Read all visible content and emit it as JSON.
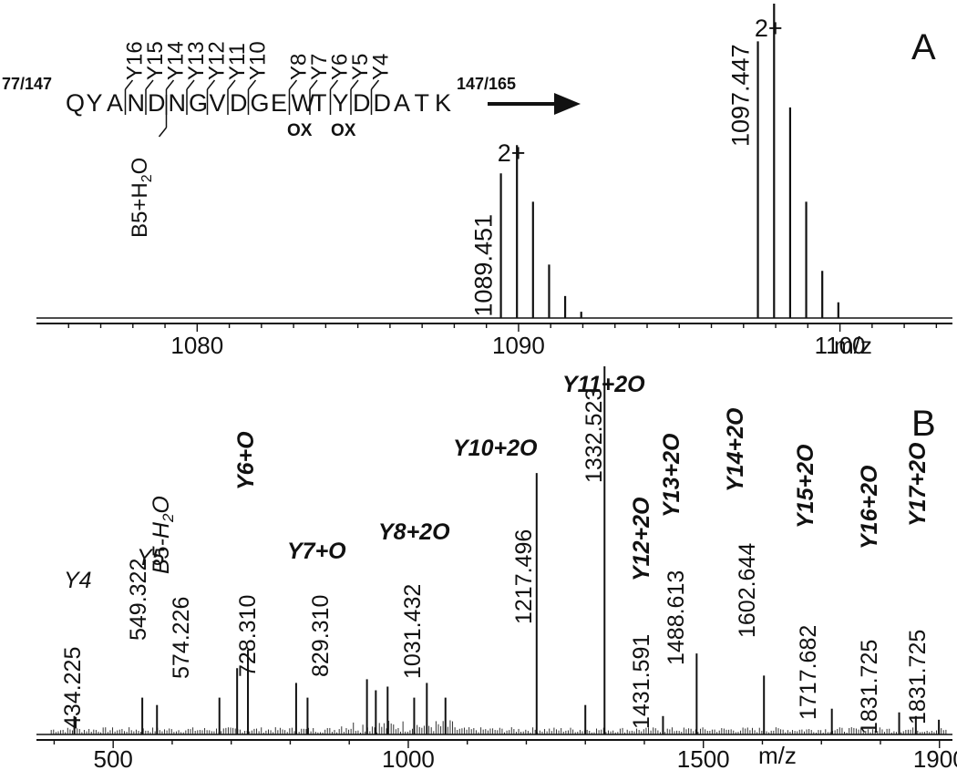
{
  "chart_data": [
    {
      "type": "line",
      "panel_letter": "A",
      "xlabel": "m/z",
      "xlim": [
        1075,
        1103.5
      ],
      "ylim": [
        0,
        100
      ],
      "x_ticks": [
        1080,
        1090,
        1100
      ],
      "grid": false,
      "sequence": {
        "prefix": "77/147",
        "residues": [
          "Q",
          "Y",
          "A",
          "N",
          "D",
          "N",
          "G",
          "V",
          "D",
          "G",
          "E",
          "W",
          "T",
          "Y",
          "D",
          "D",
          "A",
          "T",
          "K"
        ],
        "suffix": "147/165",
        "y_ions": [
          "Y16",
          "Y15",
          "Y14",
          "Y13",
          "Y12",
          "Y11",
          "Y10",
          "Y8",
          "Y7",
          "Y6",
          "Y5",
          "Y4"
        ],
        "b_ion": "B5+H",
        "b_ion_sub": "2",
        "b_ion_end": "O",
        "modifications": [
          "OX",
          "OX"
        ]
      },
      "series": [
        {
          "peaks": [
            {
              "mz": 1089.451,
              "intensity": 46
            },
            {
              "mz": 1089.95,
              "intensity": 55
            },
            {
              "mz": 1090.45,
              "intensity": 37
            },
            {
              "mz": 1090.95,
              "intensity": 17
            },
            {
              "mz": 1091.45,
              "intensity": 7
            },
            {
              "mz": 1091.95,
              "intensity": 2
            },
            {
              "mz": 1097.447,
              "intensity": 88
            },
            {
              "mz": 1097.95,
              "intensity": 100
            },
            {
              "mz": 1098.45,
              "intensity": 67
            },
            {
              "mz": 1098.95,
              "intensity": 37
            },
            {
              "mz": 1099.45,
              "intensity": 15
            },
            {
              "mz": 1099.95,
              "intensity": 5
            }
          ]
        }
      ],
      "annotations": [
        {
          "mz": 1089.451,
          "label": "1089.451"
        },
        {
          "mz": 1089.95,
          "label": "2+"
        },
        {
          "mz": 1097.447,
          "label": "1097.447"
        },
        {
          "mz": 1097.95,
          "label": "2+"
        }
      ]
    },
    {
      "type": "line",
      "panel_letter": "B",
      "xlabel": "m/z",
      "xlim": [
        370,
        1922
      ],
      "ylim": [
        0,
        100
      ],
      "x_ticks": [
        500,
        1000,
        1500,
        1900
      ],
      "grid": false,
      "series": [
        {
          "peaks": [
            {
              "mz": 434.225,
              "intensity": 5
            },
            {
              "mz": 549.322,
              "intensity": 10
            },
            {
              "mz": 574.226,
              "intensity": 8
            },
            {
              "mz": 680,
              "intensity": 10
            },
            {
              "mz": 710,
              "intensity": 18
            },
            {
              "mz": 728.31,
              "intensity": 23
            },
            {
              "mz": 810,
              "intensity": 14
            },
            {
              "mz": 829.31,
              "intensity": 10
            },
            {
              "mz": 930,
              "intensity": 15
            },
            {
              "mz": 945,
              "intensity": 12
            },
            {
              "mz": 965,
              "intensity": 13
            },
            {
              "mz": 1010,
              "intensity": 10
            },
            {
              "mz": 1031.432,
              "intensity": 14
            },
            {
              "mz": 1063,
              "intensity": 10
            },
            {
              "mz": 1217.496,
              "intensity": 71
            },
            {
              "mz": 1300,
              "intensity": 8
            },
            {
              "mz": 1332.523,
              "intensity": 100
            },
            {
              "mz": 1431.591,
              "intensity": 5
            },
            {
              "mz": 1488.613,
              "intensity": 22
            },
            {
              "mz": 1602.644,
              "intensity": 16
            },
            {
              "mz": 1717.682,
              "intensity": 7
            },
            {
              "mz": 1831.725,
              "intensity": 6
            },
            {
              "mz": 1860,
              "intensity": 5
            },
            {
              "mz": 1899,
              "intensity": 4
            }
          ]
        }
      ],
      "annotations": [
        {
          "mz": 434.225,
          "label": "434.225",
          "ion": "Y4",
          "bold": false
        },
        {
          "mz": 549.322,
          "label": "549.322",
          "ion": "Y5",
          "bold": false
        },
        {
          "mz": 574.226,
          "label": "574.226",
          "ion": "B5-H",
          "ion_sub": "2",
          "ion_end": "O",
          "bold": false
        },
        {
          "mz": 728.31,
          "label": "728.310",
          "ion": "Y6+O",
          "bold": true
        },
        {
          "mz": 829.31,
          "label": "829.310",
          "ion": "Y7+O",
          "bold": true
        },
        {
          "mz": 1031.432,
          "label": "1031.432",
          "ion": "Y8+2O",
          "bold": true
        },
        {
          "mz": 1217.496,
          "label": "1217.496",
          "ion": "Y10+2O",
          "bold": true
        },
        {
          "mz": 1332.523,
          "label": "1332.523",
          "ion": "Y11+2O",
          "bold": true
        },
        {
          "mz": 1431.591,
          "label": "1431.591",
          "ion": "Y12+2O",
          "bold": true
        },
        {
          "mz": 1488.613,
          "label": "1488.613",
          "ion": "Y13+2O",
          "bold": true
        },
        {
          "mz": 1602.644,
          "label": "1602.644",
          "ion": "Y14+2O",
          "bold": true
        },
        {
          "mz": 1717.682,
          "label": "1717.682",
          "ion": "Y15+2O",
          "bold": true
        },
        {
          "mz": 1831.725,
          "label": "1831.725",
          "ion": "Y16+2O",
          "bold": true
        },
        {
          "mz": 1831.725,
          "label": "1831.725",
          "ion": "Y17+2O",
          "bold": true
        }
      ]
    }
  ]
}
